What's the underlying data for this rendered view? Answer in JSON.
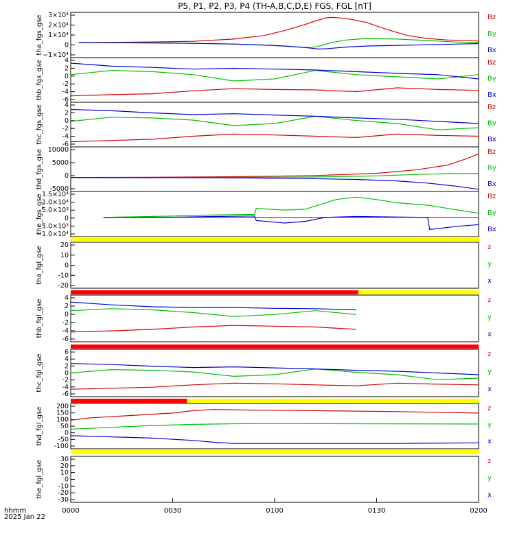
{
  "chart_data": {
    "type": "line",
    "title": "P5, P1, P2, P3, P4 (TH-A,B,C,D,E) FGS, FGL [nT]",
    "x_label": "hhmm",
    "date": "2025 Jan 22",
    "x_ticks": [
      "0000",
      "0030",
      "0100",
      "0130",
      "0200"
    ],
    "x_range": [
      "0000",
      "0200"
    ],
    "panels": [
      {
        "ylabel": "tha_fgs_gse",
        "ylim": [
          -15000,
          30000
        ],
        "yticks": [
          "−1×10⁴",
          "0",
          "1×10⁴",
          "2×10⁴",
          "3×10⁴"
        ],
        "series": [
          {
            "name": "Bz",
            "color": "#d40000",
            "x": [
              4,
              20,
              40,
              60,
              80,
              95,
              105,
              115,
              120,
              125,
              128,
              135,
              145,
              155,
              165,
              175,
              185,
              200
            ],
            "y": [
              0,
              200,
              600,
              1200,
              3500,
              7000,
              12000,
              18000,
              21500,
              24500,
              25000,
              24000,
              20000,
              13000,
              7000,
              4000,
              2500,
              1500
            ]
          },
          {
            "name": "By",
            "color": "#00c000",
            "x": [
              4,
              20,
              40,
              60,
              80,
              95,
              105,
              112,
              118,
              122,
              128,
              135,
              145,
              160,
              175,
              190,
              200
            ],
            "y": [
              0,
              -100,
              -300,
              -800,
              -1500,
              -2500,
              -3500,
              -4500,
              -5000,
              -3500,
              0,
              2500,
              4000,
              3500,
              2000,
              500,
              0
            ]
          },
          {
            "name": "Bx",
            "color": "#0000d4",
            "x": [
              4,
              20,
              40,
              60,
              80,
              95,
              105,
              115,
              122,
              126,
              135,
              145,
              160,
              175,
              190,
              200
            ],
            "y": [
              0,
              -200,
              -400,
              -800,
              -1500,
              -2500,
              -3500,
              -5000,
              -6500,
              -6000,
              -4500,
              -3500,
              -2800,
              -2200,
              -1500,
              -1000
            ]
          }
        ]
      },
      {
        "ylabel": "thb_fgs_gse",
        "ylim": [
          -6,
          4.5
        ],
        "yticks": [
          "-6",
          "-4",
          "-2",
          "0",
          "2",
          "4"
        ],
        "series": [
          {
            "name": "Bz",
            "color": "#d40000",
            "x": [
              0,
              20,
              40,
              60,
              80,
              100,
              120,
              140,
              160,
              180,
              200
            ],
            "y": [
              -4.5,
              -4.2,
              -4.0,
              -3.3,
              -2.8,
              -3.0,
              -3.1,
              -3.5,
              -2.6,
              -3.0,
              -3.2
            ]
          },
          {
            "name": "By",
            "color": "#00c000",
            "x": [
              0,
              20,
              40,
              60,
              80,
              100,
              120,
              140,
              160,
              180,
              200
            ],
            "y": [
              0.5,
              1.5,
              1.2,
              0.5,
              -1.0,
              -0.5,
              1.5,
              0.5,
              0.0,
              -0.5,
              0.5
            ]
          },
          {
            "name": "Bx",
            "color": "#0000d4",
            "x": [
              0,
              20,
              40,
              60,
              80,
              100,
              120,
              140,
              160,
              180,
              200
            ],
            "y": [
              3.2,
              2.5,
              2.2,
              1.8,
              2.0,
              1.8,
              1.6,
              1.2,
              0.8,
              0.5,
              -0.5
            ]
          }
        ]
      },
      {
        "ylabel": "thc_fgs_gse",
        "ylim": [
          -6,
          4.5
        ],
        "yticks": [
          "-6",
          "-4",
          "-2",
          "0",
          "2",
          "4"
        ],
        "series": [
          {
            "name": "Bz",
            "color": "#d40000",
            "x": [
              0,
              20,
              40,
              60,
              80,
              100,
              120,
              140,
              160,
              180,
              200
            ],
            "y": [
              -4.8,
              -4.5,
              -4.2,
              -3.5,
              -3.0,
              -3.2,
              -3.5,
              -3.8,
              -3.0,
              -3.3,
              -3.5
            ]
          },
          {
            "name": "By",
            "color": "#00c000",
            "x": [
              0,
              20,
              40,
              60,
              80,
              100,
              120,
              140,
              160,
              180,
              200
            ],
            "y": [
              0.0,
              1.0,
              0.8,
              0.3,
              -1.0,
              -0.5,
              1.2,
              0.2,
              -0.5,
              -2.0,
              -1.5
            ]
          },
          {
            "name": "Bx",
            "color": "#0000d4",
            "x": [
              0,
              20,
              40,
              60,
              80,
              100,
              120,
              140,
              160,
              180,
              200
            ],
            "y": [
              2.8,
              2.5,
              2.0,
              1.6,
              1.8,
              1.5,
              1.2,
              0.8,
              0.5,
              0.0,
              -0.5
            ]
          }
        ]
      },
      {
        "ylabel": "thd_fgs_gse",
        "ylim": [
          -5000,
          11000
        ],
        "yticks": [
          "-5000",
          "0",
          "5000",
          "10000"
        ],
        "series": [
          {
            "name": "Bz",
            "color": "#d40000",
            "x": [
              0,
              40,
              80,
              120,
              150,
              170,
              185,
              195,
              200
            ],
            "y": [
              0,
              100,
              300,
              700,
              1500,
              2800,
              4500,
              7000,
              8500
            ]
          },
          {
            "name": "By",
            "color": "#00c000",
            "x": [
              0,
              40,
              80,
              120,
              150,
              170,
              185,
              200
            ],
            "y": [
              0,
              0,
              50,
              200,
              600,
              1100,
              1400,
              1500
            ]
          },
          {
            "name": "Bx",
            "color": "#0000d4",
            "x": [
              0,
              40,
              80,
              110,
              140,
              160,
              175,
              190,
              200
            ],
            "y": [
              0,
              -50,
              -100,
              -300,
              -700,
              -1200,
              -2000,
              -3200,
              -4200
            ]
          }
        ]
      },
      {
        "ylabel": "the_fgs_gse",
        "ylim": [
          -12000,
          16000
        ],
        "yticks": [
          "−1.0×10⁴",
          "−5.0×10³",
          "0",
          "5.0×10³",
          "1.0×10⁴",
          "1.5×10⁴"
        ],
        "series": [
          {
            "name": "Bz",
            "color": "#d40000",
            "x": [
              16,
              200
            ],
            "y": [
              0,
              0
            ]
          },
          {
            "name": "By",
            "color": "#00c000",
            "x": [
              16,
              50,
              70,
              90,
              91,
              105,
              115,
              130,
              140,
              150,
              160,
              175,
              190,
              200
            ],
            "y": [
              0,
              800,
              1500,
              1800,
              5500,
              4500,
              5000,
              11000,
              12500,
              11000,
              9000,
              7500,
              4500,
              2500
            ]
          },
          {
            "name": "Bx",
            "color": "#0000d4",
            "x": [
              16,
              50,
              70,
              90,
              91,
              105,
              115,
              125,
              140,
              160,
              175,
              176,
              190,
              200
            ],
            "y": [
              0,
              100,
              500,
              800,
              -2000,
              -3500,
              -2500,
              0,
              500,
              200,
              0,
              -7500,
              -5500,
              -4500
            ]
          }
        ]
      },
      {
        "ylabel": "tha_fgl_gse",
        "ylim": [
          -25,
          25
        ],
        "yticks": [
          "-20",
          "-10",
          "0",
          "10",
          "20"
        ],
        "series": []
      },
      {
        "ylabel": "thb_fgl_gse",
        "ylim": [
          -7,
          5
        ],
        "yticks": [
          "-6",
          "-4",
          "-2",
          "0",
          "2",
          "4"
        ],
        "series": [
          {
            "name": "z",
            "color": "#d40000",
            "x": [
              0,
              20,
              40,
              60,
              80,
              100,
              120,
              140
            ],
            "y": [
              -4.5,
              -4.2,
              -3.8,
              -3.2,
              -2.8,
              -3.0,
              -3.2,
              -3.8
            ]
          },
          {
            "name": "y",
            "color": "#00c000",
            "x": [
              0,
              20,
              40,
              60,
              80,
              100,
              120,
              140
            ],
            "y": [
              1.0,
              1.5,
              1.2,
              0.5,
              -0.5,
              0.0,
              1.0,
              0.0
            ]
          },
          {
            "name": "x",
            "color": "#0000d4",
            "x": [
              0,
              20,
              40,
              60,
              80,
              100,
              120,
              140
            ],
            "y": [
              3.2,
              2.5,
              2.0,
              1.8,
              1.8,
              1.6,
              1.5,
              1.2
            ]
          }
        ]
      },
      {
        "ylabel": "thc_fgl_gse",
        "ylim": [
          -7,
          7
        ],
        "yticks": [
          "-6",
          "-4",
          "-2",
          "0",
          "2",
          "4",
          "6"
        ],
        "series": [
          {
            "name": "z",
            "color": "#d40000",
            "x": [
              0,
              20,
              40,
              60,
              80,
              100,
              120,
              140,
              160,
              180,
              200
            ],
            "y": [
              -4.8,
              -4.5,
              -4.2,
              -3.5,
              -3.0,
              -3.2,
              -3.5,
              -3.8,
              -3.0,
              -3.3,
              -3.5
            ]
          },
          {
            "name": "y",
            "color": "#00c000",
            "x": [
              0,
              20,
              40,
              60,
              80,
              100,
              120,
              140,
              160,
              180,
              200
            ],
            "y": [
              0.0,
              1.0,
              0.8,
              0.3,
              -1.0,
              -0.5,
              1.2,
              0.2,
              -0.5,
              -2.0,
              -1.5
            ]
          },
          {
            "name": "x",
            "color": "#0000d4",
            "x": [
              0,
              20,
              40,
              60,
              80,
              100,
              120,
              140,
              160,
              180,
              200
            ],
            "y": [
              2.8,
              2.5,
              2.0,
              1.6,
              1.8,
              1.5,
              1.2,
              0.8,
              0.5,
              0.0,
              -0.5
            ]
          }
        ]
      },
      {
        "ylabel": "thd_fgl_gse",
        "ylim": [
          -150,
          230
        ],
        "yticks": [
          "-100",
          "-50",
          "0",
          "50",
          "100",
          "150",
          "200"
        ],
        "series": [
          {
            "name": "z",
            "color": "#d40000",
            "x": [
              0,
              10,
              30,
              50,
              60,
              70,
              90,
              120,
              160,
              200
            ],
            "y": [
              90,
              110,
              130,
              150,
              170,
              180,
              175,
              170,
              162,
              150
            ]
          },
          {
            "name": "y",
            "color": "#00c000",
            "x": [
              0,
              20,
              40,
              60,
              80,
              100,
              140,
              200
            ],
            "y": [
              15,
              30,
              45,
              55,
              60,
              62,
              60,
              58
            ]
          },
          {
            "name": "x",
            "color": "#0000d4",
            "x": [
              0,
              20,
              40,
              60,
              70,
              80,
              120,
              160,
              200
            ],
            "y": [
              -40,
              -50,
              -60,
              -80,
              -95,
              -105,
              -105,
              -105,
              -100
            ]
          }
        ]
      },
      {
        "ylabel": "the_fgl_gse",
        "ylim": [
          -35,
          35
        ],
        "yticks": [
          "-30",
          "-20",
          "-10",
          "0",
          "10",
          "20",
          "30"
        ],
        "series": []
      }
    ]
  },
  "colors": {
    "z": "#d40000",
    "y": "#00c000",
    "x": "#0000d4",
    "mode_yellow": "#ffff00",
    "mode_red": "#ff0000"
  },
  "mode_bars": [
    {
      "after_panel": 4,
      "segments": [
        {
          "from": 0,
          "to": 200,
          "color": "mode_yellow"
        }
      ]
    },
    {
      "after_panel": 5,
      "segments": [
        {
          "from": 0,
          "to": 141,
          "color": "mode_red"
        },
        {
          "from": 141,
          "to": 200,
          "color": "mode_yellow"
        }
      ]
    },
    {
      "after_panel": 6,
      "segments": [
        {
          "from": 0,
          "to": 200,
          "color": "mode_red"
        }
      ]
    },
    {
      "after_panel": 7,
      "segments": [
        {
          "from": 0,
          "to": 57,
          "color": "mode_red"
        },
        {
          "from": 57,
          "to": 200,
          "color": "mode_yellow"
        }
      ]
    },
    {
      "after_panel": 8,
      "segments": [
        {
          "from": 0,
          "to": 200,
          "color": "mode_yellow"
        }
      ]
    }
  ]
}
